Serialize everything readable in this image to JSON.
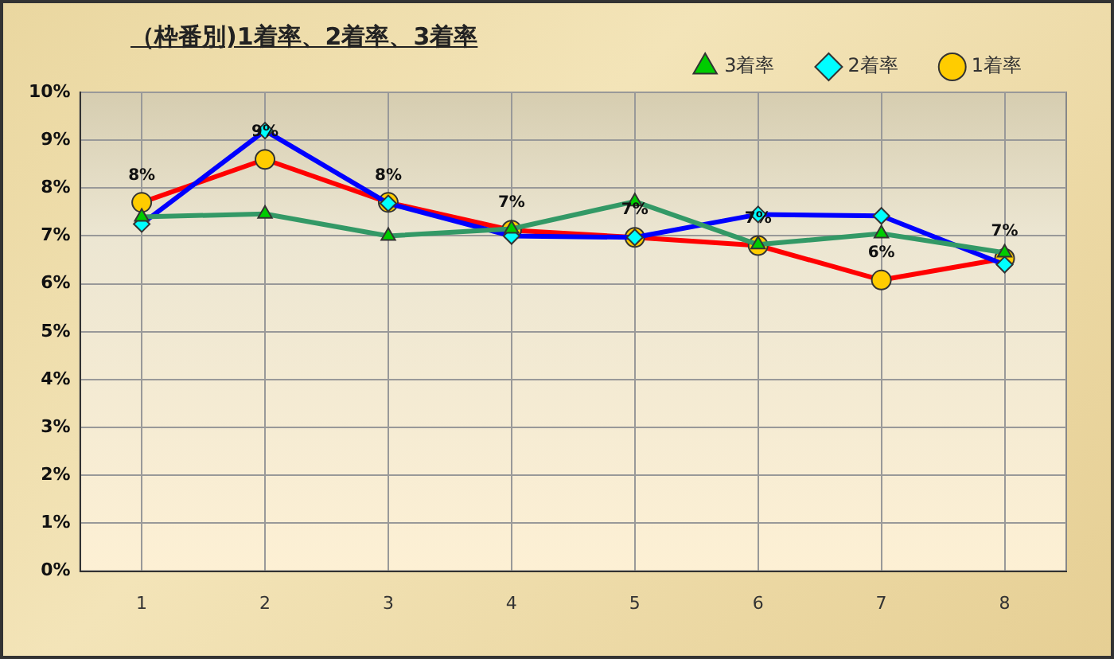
{
  "chart_data": {
    "type": "line",
    "title": "（枠番別)1着率、2着率、3着率",
    "categories": [
      "1",
      "2",
      "3",
      "4",
      "5",
      "6",
      "7",
      "8"
    ],
    "series": [
      {
        "name": "3着率",
        "color": "#339966",
        "marker": "triangle",
        "values": [
          7.4,
          7.46,
          7.0,
          7.15,
          7.72,
          6.82,
          7.05,
          6.65
        ]
      },
      {
        "name": "2着率",
        "color": "#0000ff",
        "marker": "diamond",
        "values": [
          7.25,
          9.2,
          7.68,
          7.0,
          6.97,
          7.45,
          7.42,
          6.4
        ]
      },
      {
        "name": "1着率",
        "color": "#ff0000",
        "marker": "circle",
        "values": [
          7.7,
          8.6,
          7.7,
          7.12,
          6.97,
          6.8,
          6.08,
          6.53
        ],
        "value_labels": [
          "8%",
          "9%",
          "8%",
          "7%",
          "7%",
          "7%",
          "6%",
          "7%"
        ]
      }
    ],
    "ylim": [
      0,
      10
    ],
    "yticks": [
      {
        "value": 0,
        "label": "0%"
      },
      {
        "value": 1,
        "label": "1%"
      },
      {
        "value": 2,
        "label": "2%"
      },
      {
        "value": 3,
        "label": "3%"
      },
      {
        "value": 4,
        "label": "4%"
      },
      {
        "value": 5,
        "label": "5%"
      },
      {
        "value": 6,
        "label": "6%"
      },
      {
        "value": 7,
        "label": "7%"
      },
      {
        "value": 8,
        "label": "8%"
      },
      {
        "value": 9,
        "label": "9%"
      },
      {
        "value": 10,
        "label": "10%"
      }
    ],
    "grid": true,
    "legend": "top right",
    "line_style": "solid"
  }
}
